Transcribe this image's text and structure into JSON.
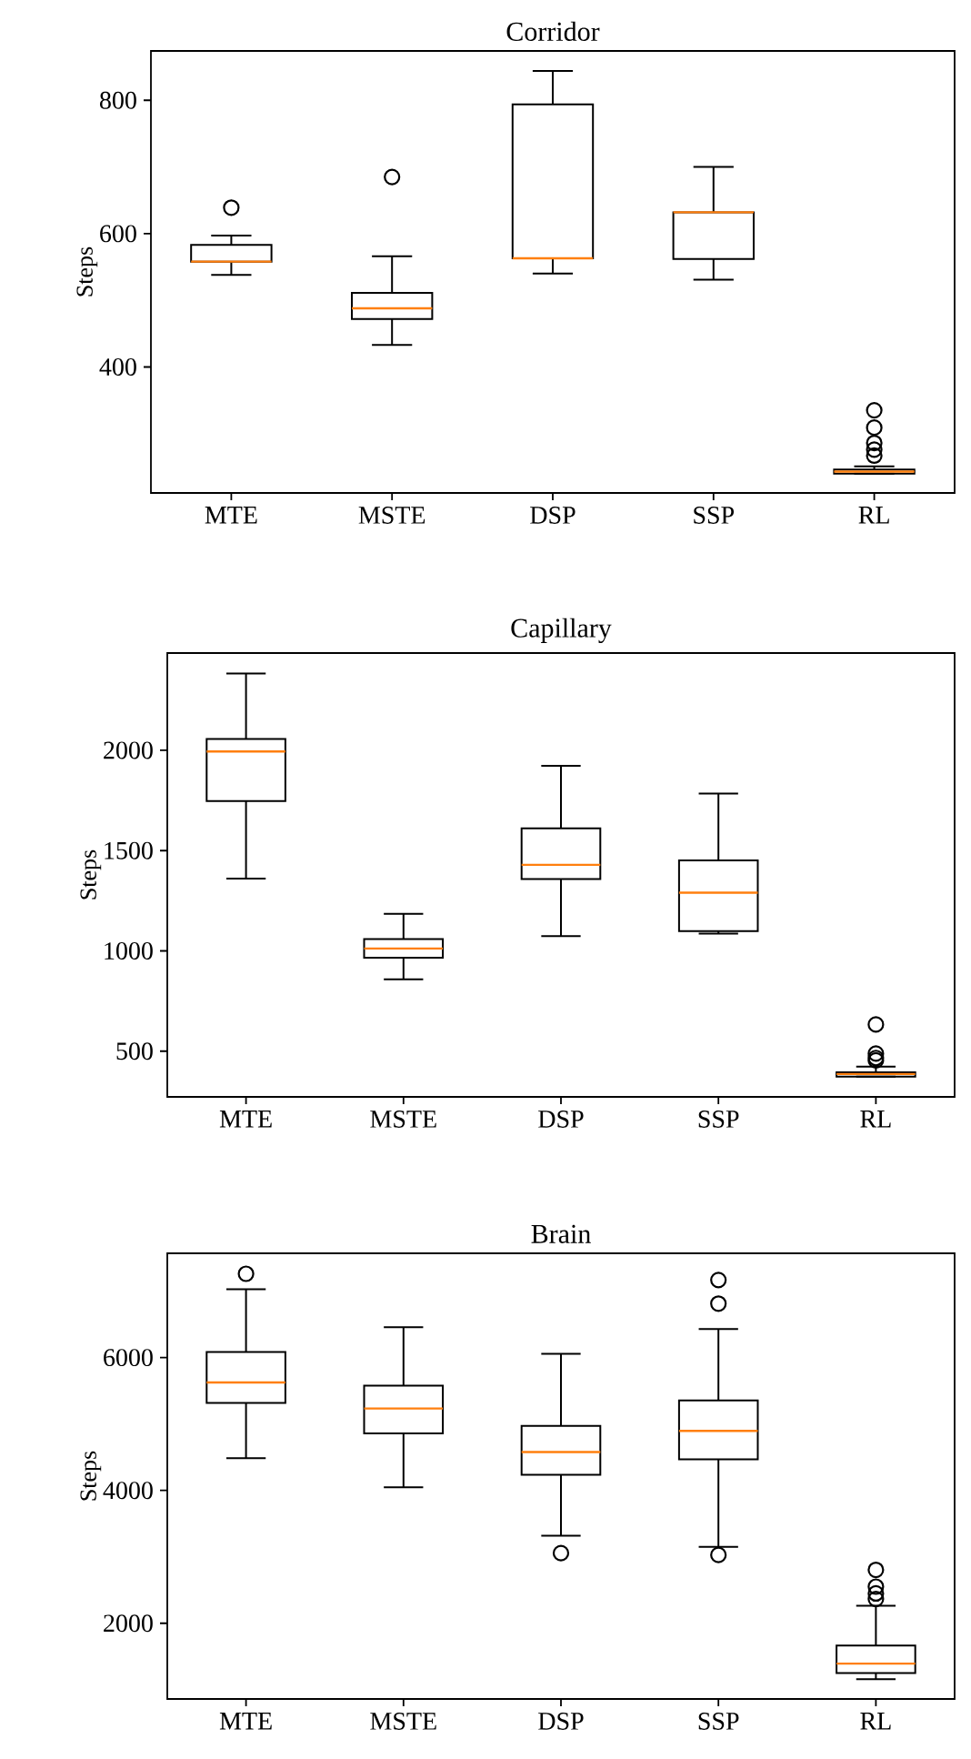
{
  "chart_data": [
    {
      "type": "box",
      "title": "Corridor",
      "ylabel": "Steps",
      "categories": [
        "MTE",
        "MSTE",
        "DSP",
        "SSP",
        "RL"
      ],
      "ylim": [
        211,
        874
      ],
      "yticks": [
        400,
        600,
        800
      ],
      "boxes": [
        {
          "low": 538,
          "q1": 558,
          "median": 558,
          "q3": 583,
          "high": 597,
          "outliers": [
            639
          ]
        },
        {
          "low": 433,
          "q1": 472,
          "median": 488,
          "q3": 511,
          "high": 566,
          "outliers": [
            685
          ]
        },
        {
          "low": 540,
          "q1": 563,
          "median": 563,
          "q3": 794,
          "high": 844
        },
        {
          "low": 531,
          "q1": 562,
          "median": 632,
          "q3": 632,
          "high": 700
        },
        {
          "low": 240,
          "q1": 240,
          "median": 243,
          "q3": 246,
          "high": 251,
          "outliers": [
            267,
            276,
            286,
            309,
            335
          ]
        }
      ]
    },
    {
      "type": "box",
      "title": "Capillary",
      "ylabel": "Steps",
      "categories": [
        "MTE",
        "MSTE",
        "DSP",
        "SSP",
        "RL"
      ],
      "ylim": [
        272,
        2485
      ],
      "yticks": [
        500,
        1000,
        1500,
        2000
      ],
      "boxes": [
        {
          "low": 1361,
          "q1": 1747,
          "median": 1994,
          "q3": 2056,
          "high": 2383
        },
        {
          "low": 858,
          "q1": 966,
          "median": 1012,
          "q3": 1059,
          "high": 1185
        },
        {
          "low": 1074,
          "q1": 1358,
          "median": 1429,
          "q3": 1611,
          "high": 1923
        },
        {
          "low": 1086,
          "q1": 1099,
          "median": 1290,
          "q3": 1451,
          "high": 1784
        },
        {
          "low": 373,
          "q1": 373,
          "median": 386,
          "q3": 395,
          "high": 423,
          "outliers": [
            454,
            466,
            488,
            633
          ]
        }
      ]
    },
    {
      "type": "box",
      "title": "Brain",
      "ylabel": "Steps",
      "categories": [
        "MTE",
        "MSTE",
        "DSP",
        "SSP",
        "RL"
      ],
      "ylim": [
        860,
        7570
      ],
      "yticks": [
        2000,
        4000,
        6000
      ],
      "boxes": [
        {
          "low": 4486,
          "q1": 5318,
          "median": 5626,
          "q3": 6084,
          "high": 7028,
          "outliers": [
            7262
          ]
        },
        {
          "low": 4047,
          "q1": 4860,
          "median": 5234,
          "q3": 5579,
          "high": 6458
        },
        {
          "low": 3318,
          "q1": 4234,
          "median": 4579,
          "q3": 4972,
          "high": 6056,
          "outliers": [
            3056
          ]
        },
        {
          "low": 3150,
          "q1": 4467,
          "median": 4897,
          "q3": 5355,
          "high": 6430,
          "outliers": [
            3028,
            6813,
            7168
          ]
        },
        {
          "low": 1159,
          "q1": 1252,
          "median": 1393,
          "q3": 1664,
          "high": 2262,
          "outliers": [
            2365,
            2449,
            2551,
            2804
          ]
        }
      ]
    }
  ]
}
